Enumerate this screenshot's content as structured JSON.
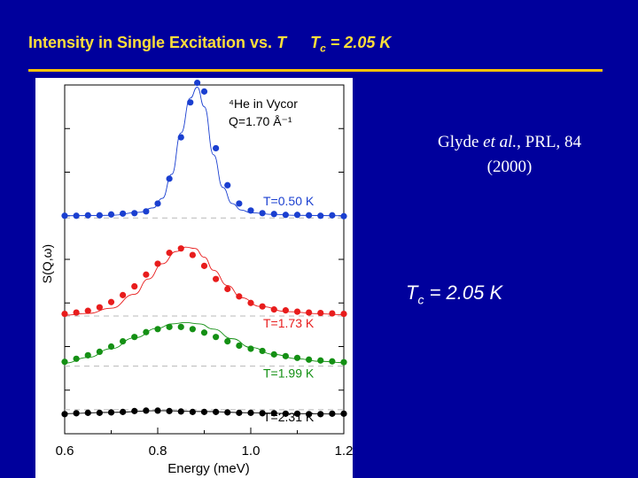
{
  "slide": {
    "title_main": "Intensity in Single Excitation vs.",
    "title_var": "T",
    "title_tc_symbol": "T",
    "title_tc_sub": "c",
    "title_tc_value": "= 2.05 K",
    "citation_author": "Glyde",
    "citation_etal": "et al.",
    "citation_journal": ", PRL, 84",
    "citation_year": "(2000)",
    "tc_symbol": "T",
    "tc_sub": "c",
    "tc_value": "= 2.05 K"
  },
  "colors": {
    "background": "#00009c",
    "title": "#ffdf3a",
    "rule": "#ffc200",
    "series": [
      "#1a3fd0",
      "#e81c1c",
      "#149014",
      "#000000"
    ]
  },
  "chart_data": {
    "type": "scatter",
    "title": "",
    "xlabel": "Energy   (meV)",
    "ylabel": "S(Q,ω)",
    "xlim": [
      0.6,
      1.2
    ],
    "ylim": [
      0,
      8
    ],
    "xticks": [
      0.6,
      0.8,
      1.0,
      1.2
    ],
    "xtick_labels": [
      "0.6",
      "0.8",
      "1.0",
      "1.2"
    ],
    "annotation_lines": [
      "⁴He in Vycor",
      "Q=1.70 Å⁻¹"
    ],
    "series": [
      {
        "name": "T=0.50 K",
        "color": "#1a3fd0",
        "baseline": 4.95,
        "x": [
          0.6,
          0.625,
          0.65,
          0.675,
          0.7,
          0.725,
          0.75,
          0.775,
          0.8,
          0.825,
          0.85,
          0.87,
          0.885,
          0.9,
          0.925,
          0.95,
          0.975,
          1.0,
          1.025,
          1.05,
          1.075,
          1.1,
          1.125,
          1.15,
          1.175,
          1.2
        ],
        "y": [
          5.0,
          5.0,
          5.01,
          5.01,
          5.03,
          5.05,
          5.06,
          5.1,
          5.28,
          5.85,
          6.8,
          7.6,
          8.05,
          7.85,
          6.55,
          5.7,
          5.28,
          5.12,
          5.06,
          5.04,
          5.02,
          5.02,
          5.01,
          5.0,
          5.01,
          4.99
        ],
        "fit_x": [
          0.6,
          0.7,
          0.76,
          0.79,
          0.81,
          0.83,
          0.85,
          0.87,
          0.885,
          0.9,
          0.92,
          0.94,
          0.96,
          0.98,
          1.0,
          1.05,
          1.1,
          1.2
        ],
        "fit_y": [
          5.0,
          5.01,
          5.08,
          5.18,
          5.4,
          5.95,
          6.9,
          7.7,
          7.95,
          7.5,
          6.4,
          5.65,
          5.28,
          5.13,
          5.07,
          5.03,
          5.01,
          5.0
        ]
      },
      {
        "name": "T=1.73 K",
        "color": "#e81c1c",
        "baseline": 2.7,
        "x": [
          0.6,
          0.625,
          0.65,
          0.675,
          0.7,
          0.725,
          0.75,
          0.775,
          0.8,
          0.825,
          0.85,
          0.875,
          0.9,
          0.925,
          0.95,
          0.975,
          1.0,
          1.025,
          1.05,
          1.075,
          1.1,
          1.125,
          1.15,
          1.175,
          1.2
        ],
        "y": [
          2.75,
          2.78,
          2.82,
          2.9,
          3.02,
          3.18,
          3.38,
          3.65,
          3.9,
          4.15,
          4.25,
          4.1,
          3.85,
          3.55,
          3.32,
          3.15,
          3.0,
          2.92,
          2.85,
          2.83,
          2.8,
          2.78,
          2.77,
          2.76,
          2.75
        ],
        "fit_x": [
          0.6,
          0.65,
          0.7,
          0.75,
          0.78,
          0.81,
          0.84,
          0.86,
          0.88,
          0.9,
          0.92,
          0.95,
          0.98,
          1.02,
          1.08,
          1.15,
          1.2
        ],
        "fit_y": [
          2.72,
          2.76,
          2.88,
          3.2,
          3.55,
          3.9,
          4.18,
          4.28,
          4.25,
          4.05,
          3.75,
          3.4,
          3.12,
          2.92,
          2.8,
          2.75,
          2.73
        ]
      },
      {
        "name": "T=1.99 K",
        "color": "#149014",
        "baseline": 1.55,
        "x": [
          0.6,
          0.625,
          0.65,
          0.675,
          0.7,
          0.725,
          0.75,
          0.775,
          0.8,
          0.825,
          0.85,
          0.875,
          0.9,
          0.925,
          0.95,
          0.975,
          1.0,
          1.025,
          1.05,
          1.075,
          1.1,
          1.125,
          1.15,
          1.175,
          1.2
        ],
        "y": [
          1.65,
          1.72,
          1.8,
          1.88,
          2.0,
          2.12,
          2.22,
          2.33,
          2.4,
          2.45,
          2.45,
          2.4,
          2.32,
          2.22,
          2.12,
          2.02,
          1.95,
          1.9,
          1.82,
          1.78,
          1.74,
          1.7,
          1.68,
          1.66,
          1.64
        ],
        "fit_x": [
          0.6,
          0.65,
          0.7,
          0.75,
          0.8,
          0.83,
          0.86,
          0.89,
          0.92,
          0.96,
          1.0,
          1.05,
          1.1,
          1.15,
          1.2
        ],
        "fit_y": [
          1.62,
          1.75,
          1.95,
          2.2,
          2.42,
          2.52,
          2.55,
          2.52,
          2.4,
          2.18,
          1.98,
          1.82,
          1.72,
          1.66,
          1.63
        ]
      },
      {
        "name": "T=2.31 K",
        "color": "#000000",
        "baseline": 0.55,
        "x": [
          0.6,
          0.625,
          0.65,
          0.675,
          0.7,
          0.725,
          0.75,
          0.775,
          0.8,
          0.825,
          0.85,
          0.875,
          0.9,
          0.925,
          0.95,
          0.975,
          1.0,
          1.025,
          1.05,
          1.075,
          1.1,
          1.125,
          1.15,
          1.175,
          1.2
        ],
        "y": [
          0.45,
          0.47,
          0.48,
          0.48,
          0.49,
          0.5,
          0.52,
          0.53,
          0.53,
          0.52,
          0.51,
          0.5,
          0.5,
          0.5,
          0.49,
          0.48,
          0.48,
          0.47,
          0.47,
          0.46,
          0.46,
          0.45,
          0.45,
          0.46,
          0.46
        ],
        "fit_x": [
          0.6,
          0.7,
          0.8,
          0.9,
          1.0,
          1.1,
          1.2
        ],
        "fit_y": [
          0.46,
          0.49,
          0.53,
          0.51,
          0.48,
          0.46,
          0.45
        ]
      }
    ]
  }
}
